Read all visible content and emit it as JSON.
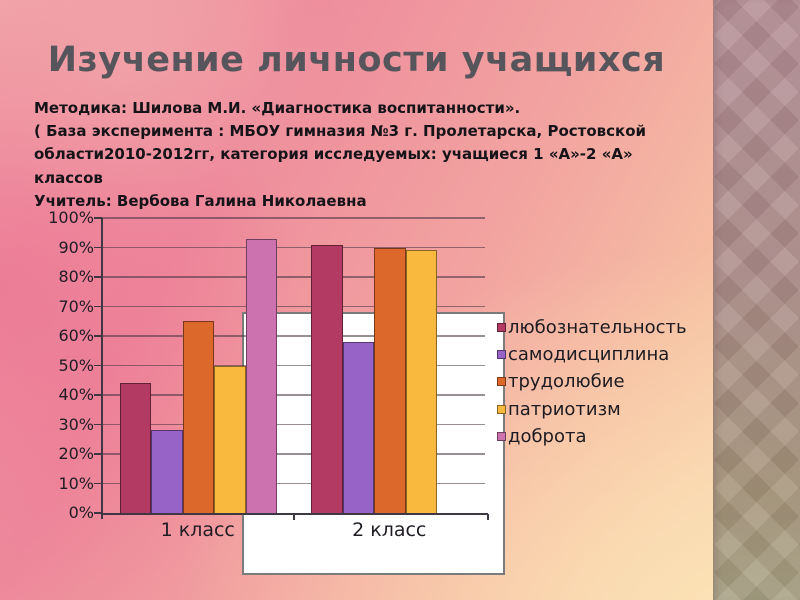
{
  "slide": {
    "title": "Изучение личности учащихся",
    "body_lines": [
      "Методика: Шилова М.И. «Диагностика воспитанности».",
      "( База эксперимента :  МБОУ гимназия №3 г. Пролетарска, Ростовской",
      "области2010-2012гг, категория исследуемых: учащиеся 1 «А»-2 «А»",
      "классов",
      "Учитель: Вербова Галина Николаевна"
    ]
  },
  "chart_data": {
    "type": "bar",
    "categories": [
      "1 класс",
      "2 класс"
    ],
    "series": [
      {
        "name": "любознательность",
        "color": "#b23a63",
        "values": [
          44,
          91
        ]
      },
      {
        "name": "самодисциплина",
        "color": "#9763c6",
        "values": [
          28,
          58
        ]
      },
      {
        "name": "трудолюбие",
        "color": "#dc682c",
        "values": [
          65,
          90
        ]
      },
      {
        "name": "патриотизм",
        "color": "#f9b83e",
        "values": [
          50,
          89
        ]
      },
      {
        "name": "доброта",
        "color": "#cb72af",
        "values": [
          93,
          0
        ]
      }
    ],
    "yticks": [
      "0%",
      "10%",
      "20%",
      "30%",
      "40%",
      "50%",
      "60%",
      "70%",
      "80%",
      "90%",
      "100%"
    ],
    "ylim": [
      0,
      100
    ],
    "grid": true,
    "legend_position": "right",
    "plot_background": "transparent-over-slide with white backdrop panel on right half"
  }
}
